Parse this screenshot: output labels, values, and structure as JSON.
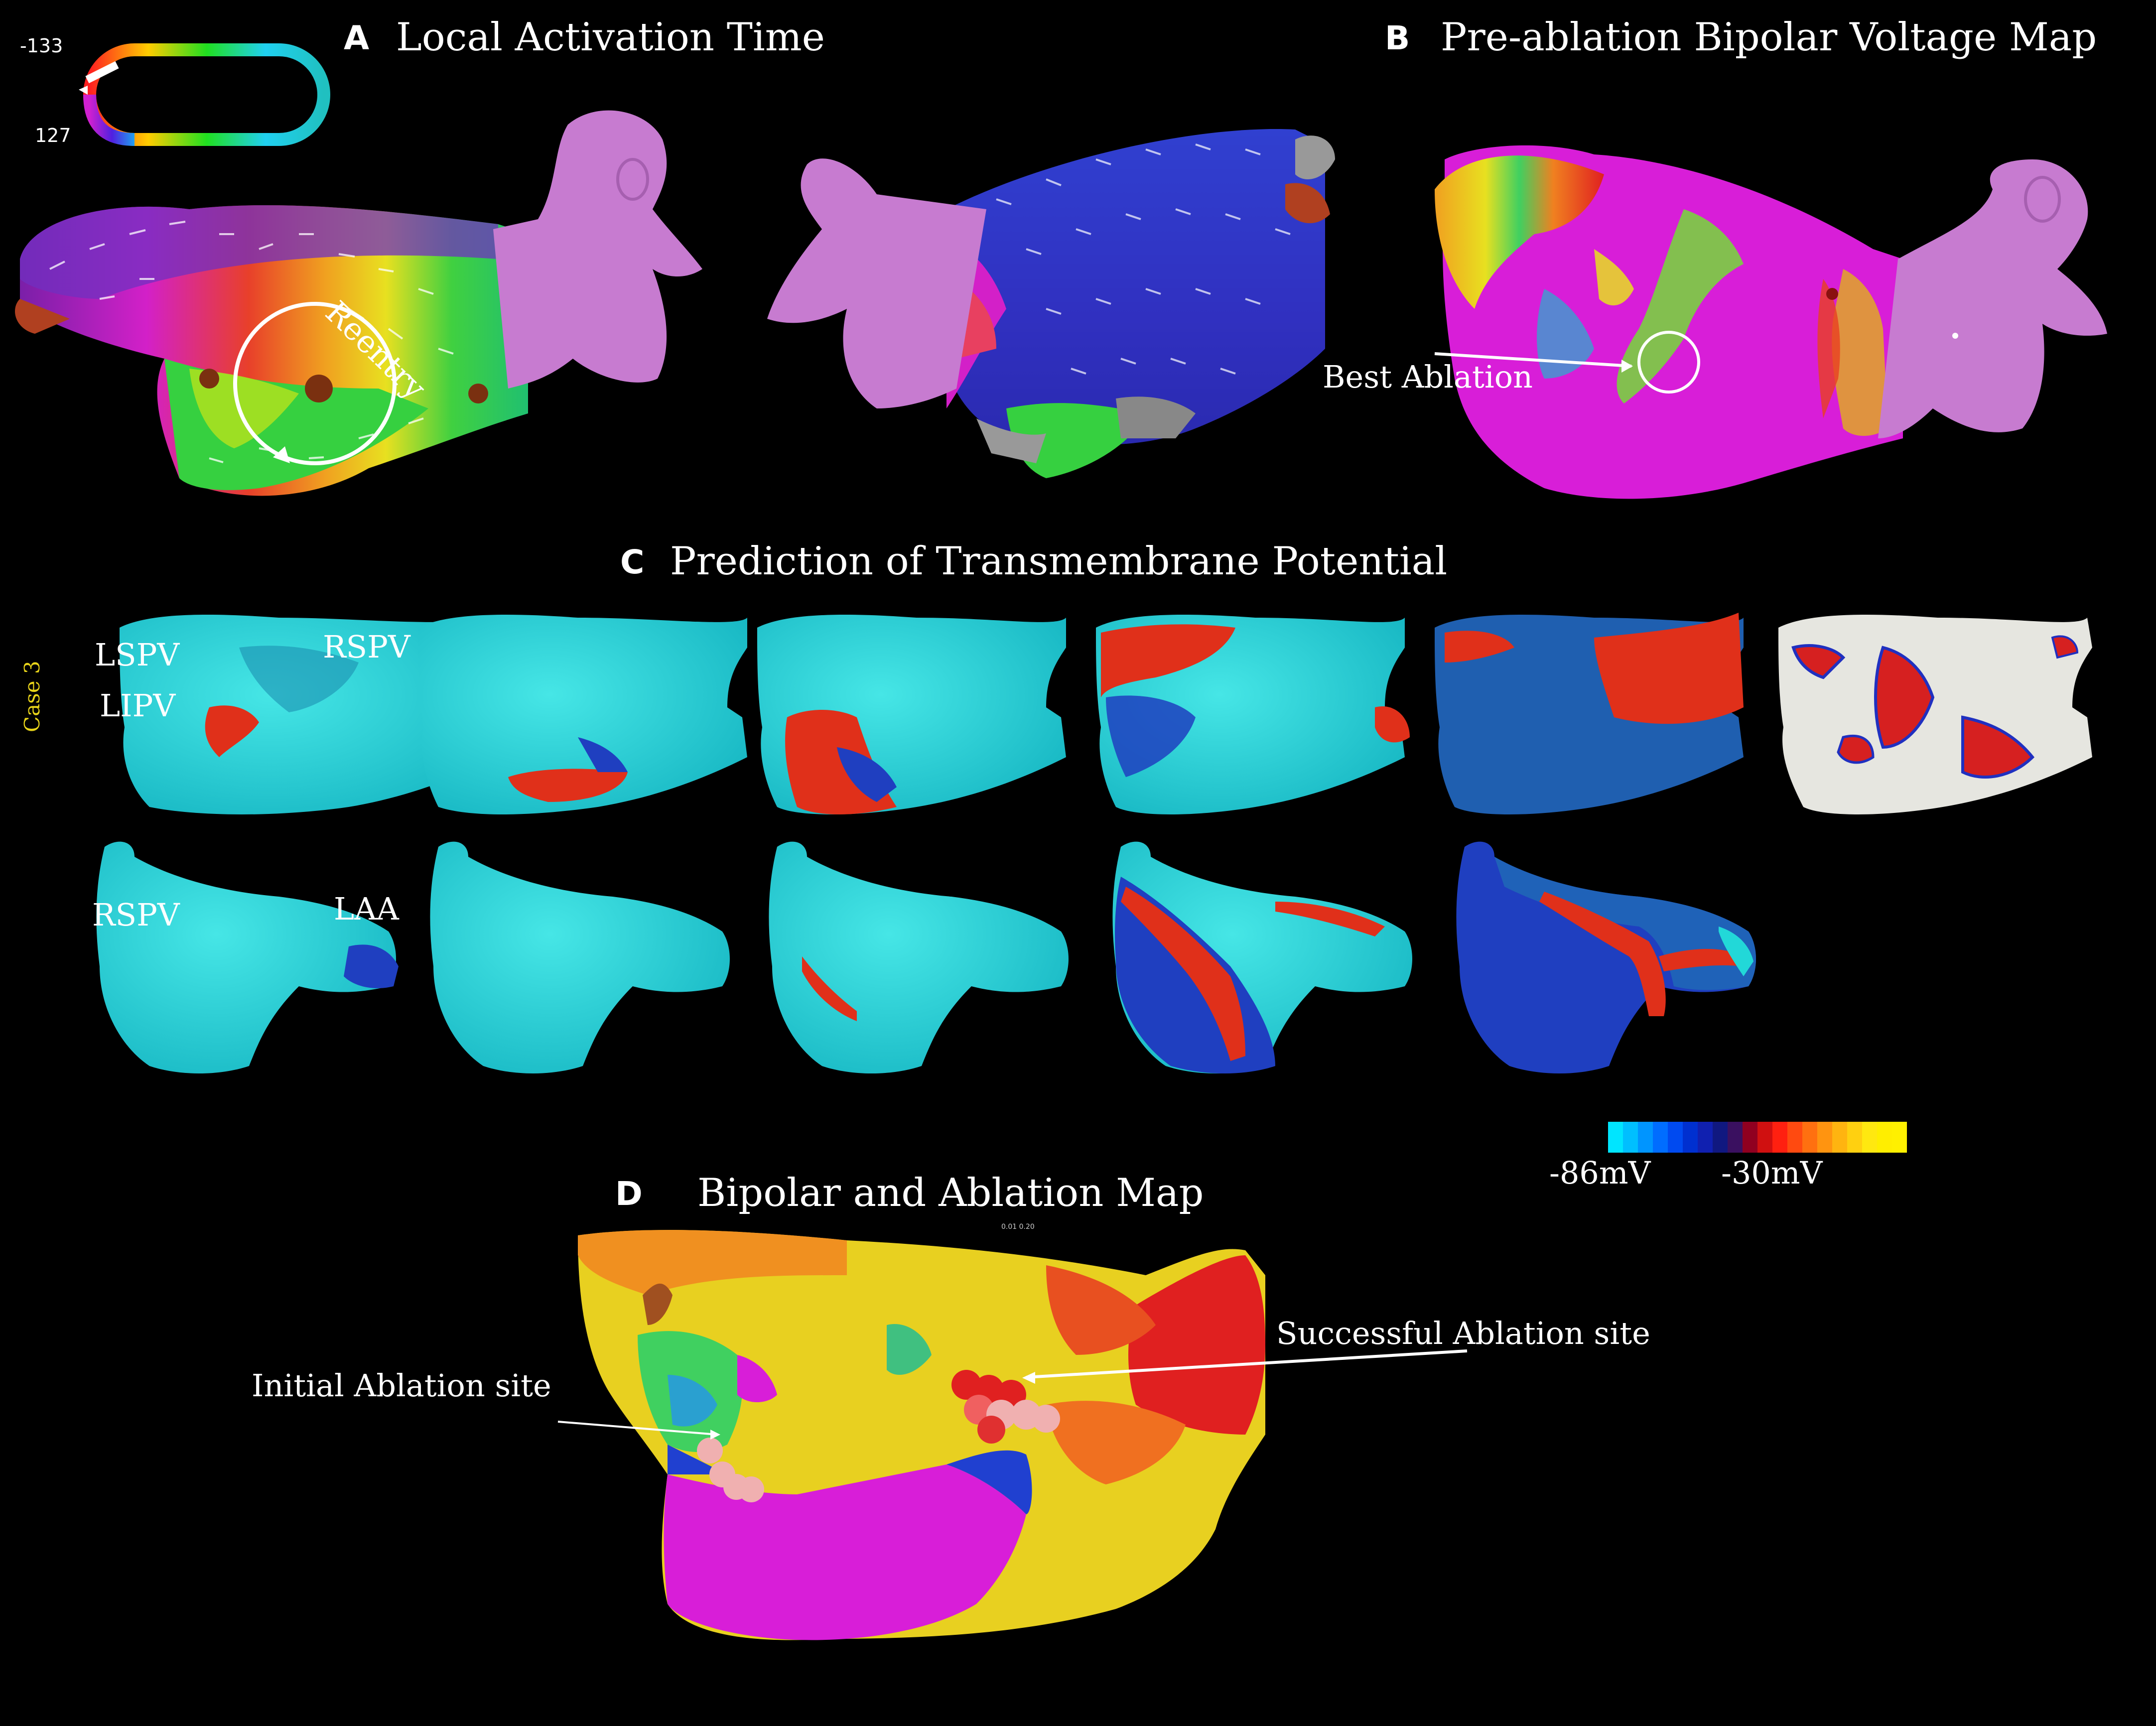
{
  "panel_a": {
    "letter": "A",
    "title": "Local Activation Time",
    "scale_top": "-133",
    "scale_bottom": "127",
    "annotation": "Reentry"
  },
  "panel_b": {
    "letter": "B",
    "title": "Pre-ablation Bipolar Voltage Map",
    "annotation": "Best Ablation"
  },
  "panel_c": {
    "letter": "C",
    "title": "Prediction of Transmembrane Potential",
    "case_label": "Case 3",
    "labels": {
      "lspv": "LSPV",
      "rspv_top": "RSPV",
      "lipv": "LIPV",
      "rspv_bottom": "RSPV",
      "laa": "LAA"
    },
    "scale_min": "-86mV",
    "scale_mid": "-30mV"
  },
  "panel_d": {
    "letter": "D",
    "title": "Bipolar and Ablation Map",
    "tiny_scale": "0.01 0.20",
    "initial_site": "Initial Ablation site",
    "successful_site": "Successful Ablation site"
  },
  "colors": {
    "background": "#000000",
    "magenta": "#d81ed8",
    "cyan": "#22d8d8",
    "blue": "#1f3fc0",
    "red": "#e0301a",
    "pv_pink": "#c77bd0",
    "scale_cyan": "#00e5ff",
    "scale_yellow": "#ffee00"
  }
}
